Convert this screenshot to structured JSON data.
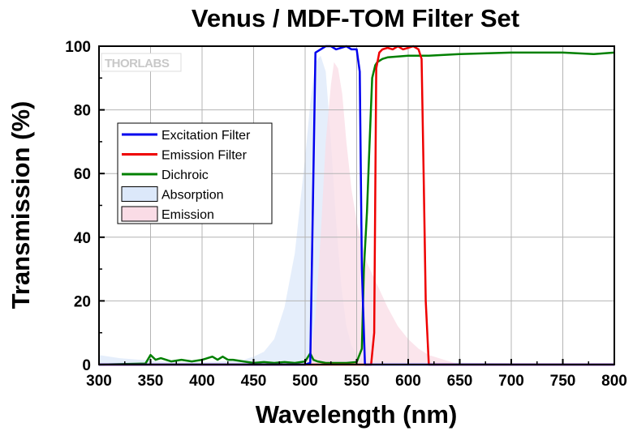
{
  "chart_data": {
    "type": "line",
    "title": "Venus / MDF-TOM Filter Set",
    "xlabel": "Wavelength (nm)",
    "ylabel": "Transmission (%)",
    "xlim": [
      300,
      800
    ],
    "ylim": [
      0,
      100
    ],
    "x_ticks": [
      300,
      350,
      400,
      450,
      500,
      550,
      600,
      650,
      700,
      750,
      800
    ],
    "y_ticks": [
      0,
      20,
      40,
      60,
      80,
      100
    ],
    "grid": true,
    "legend_position": "top-left",
    "logo_text": "THORLABS",
    "series": [
      {
        "name": "Excitation Filter",
        "kind": "line",
        "color": "#0000ee",
        "x": [
          300,
          500,
          505,
          508,
          510,
          515,
          520,
          525,
          530,
          535,
          540,
          545,
          550,
          553,
          555,
          558,
          800
        ],
        "y": [
          0,
          0,
          0.5,
          60,
          98,
          99,
          100,
          100,
          99,
          99.5,
          100,
          99,
          99,
          92,
          30,
          0,
          0
        ]
      },
      {
        "name": "Emission Filter",
        "kind": "line",
        "color": "#ee0000",
        "x": [
          300,
          564,
          567,
          569,
          572,
          575,
          580,
          585,
          590,
          595,
          600,
          605,
          610,
          613,
          615,
          617,
          620,
          800
        ],
        "y": [
          0,
          0,
          10,
          93,
          98,
          99,
          99.5,
          99,
          100,
          99,
          99.5,
          100,
          99,
          96,
          60,
          20,
          0,
          0
        ]
      },
      {
        "name": "Dichroic",
        "kind": "line",
        "color": "#008000",
        "x": [
          300,
          345,
          350,
          355,
          360,
          370,
          380,
          390,
          400,
          410,
          415,
          420,
          425,
          430,
          440,
          450,
          460,
          470,
          480,
          490,
          500,
          505,
          508,
          512,
          520,
          530,
          540,
          550,
          555,
          557,
          560,
          562,
          565,
          568,
          570,
          575,
          580,
          600,
          620,
          650,
          700,
          750,
          780,
          800
        ],
        "y": [
          0,
          0.3,
          3,
          1.5,
          2,
          1,
          1.5,
          1,
          1.5,
          2.5,
          1.5,
          2.5,
          1.5,
          1.5,
          1,
          0.5,
          0.8,
          0.5,
          0.8,
          0.5,
          1,
          3.5,
          1.5,
          1,
          0.5,
          0.5,
          0.5,
          0.8,
          5,
          30,
          48,
          65,
          90,
          94,
          95,
          96,
          96.5,
          97,
          97,
          97.5,
          98,
          98,
          97.5,
          98
        ]
      },
      {
        "name": "Absorption",
        "kind": "area",
        "color": "#dce8fa",
        "x": [
          300,
          320,
          340,
          360,
          380,
          400,
          420,
          440,
          450,
          460,
          470,
          480,
          490,
          495,
          500,
          505,
          510,
          515,
          520,
          525,
          530,
          535,
          540,
          545,
          550,
          560,
          800
        ],
        "y": [
          3,
          2,
          1.5,
          1,
          0.8,
          0.8,
          1,
          1.5,
          2.5,
          4,
          8,
          18,
          35,
          50,
          65,
          82,
          95,
          97,
          92,
          70,
          45,
          25,
          12,
          6,
          3,
          1,
          0
        ]
      },
      {
        "name": "Emission",
        "kind": "area",
        "color": "#fadce6",
        "x": [
          300,
          500,
          505,
          510,
          515,
          520,
          525,
          528,
          532,
          536,
          540,
          545,
          550,
          555,
          560,
          570,
          580,
          590,
          600,
          610,
          620,
          640,
          650,
          800
        ],
        "y": [
          0,
          0,
          3,
          15,
          40,
          70,
          88,
          95,
          93,
          85,
          70,
          55,
          45,
          38,
          32,
          25,
          18,
          12,
          8,
          5,
          3,
          1,
          0,
          0
        ]
      }
    ]
  }
}
